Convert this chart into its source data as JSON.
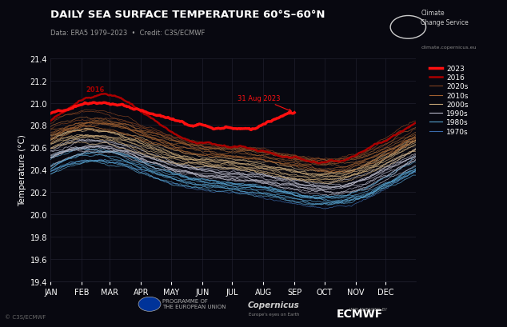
{
  "title": "DAILY SEA SURFACE TEMPERATURE 60°S–60°N",
  "subtitle": "Data: ERA5 1979–2023  •  Credit: C3S/ECMWF",
  "ylabel": "Temperature (°C)",
  "background_color": "#080810",
  "grid_color": "#252535",
  "text_color": "#ffffff",
  "ylim": [
    19.4,
    21.4
  ],
  "yticks": [
    19.4,
    19.6,
    19.8,
    20.0,
    20.2,
    20.4,
    20.6,
    20.8,
    21.0,
    21.2,
    21.4
  ],
  "months": [
    "JAN",
    "FEB",
    "MAR",
    "APR",
    "MAY",
    "JUN",
    "JUL",
    "AUG",
    "SEP",
    "OCT",
    "NOV",
    "DEC"
  ],
  "decade_colors": {
    "1970s": "#3a6aaa",
    "1980s": "#55a0cc",
    "1990s": "#b8b8c8",
    "2000s": "#c8a878",
    "2010s": "#a06030",
    "2020s": "#804020"
  },
  "color_2016": "#aa0000",
  "color_2023": "#ff1010",
  "year_start": 1979,
  "year_end": 2023,
  "copyright_text": "© C3S/ECMWF",
  "legend_entries": [
    "2023",
    "2016",
    "2020s",
    "2010s",
    "2000s",
    "1990s",
    "1980s",
    "1970s"
  ],
  "legend_colors": [
    "#ff1010",
    "#aa0000",
    "#804020",
    "#a06030",
    "#c8a878",
    "#b8b8c8",
    "#55a0cc",
    "#3a6aaa"
  ],
  "legend_lw": [
    2.5,
    1.8,
    0.8,
    0.8,
    0.8,
    0.8,
    0.8,
    0.8
  ]
}
